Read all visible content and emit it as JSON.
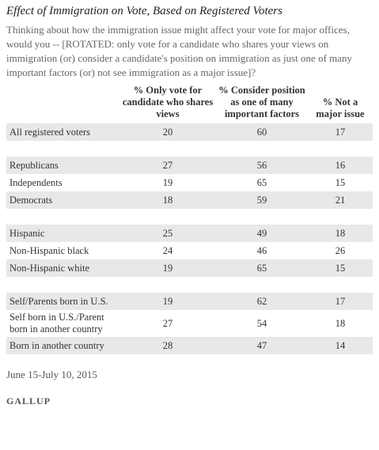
{
  "title": "Effect of Immigration on Vote, Based on Registered Voters",
  "question": "Thinking about how the immigration issue might affect your vote for major offices, would you  --  [ROTATED: only vote for a candidate who shares your views on immigration (or) consider a candidate's position on immigration as just one of many important factors (or) not see immigration as a major issue]?",
  "table": {
    "headers": [
      "% Only vote for candidate who shares views",
      "% Consider position as one of many important factors",
      "% Not a major issue"
    ],
    "groups": [
      [
        [
          "All registered voters",
          20,
          60,
          17
        ]
      ],
      [
        [
          "Republicans",
          27,
          56,
          16
        ],
        [
          "Independents",
          19,
          65,
          15
        ],
        [
          "Democrats",
          18,
          59,
          21
        ]
      ],
      [
        [
          "Hispanic",
          25,
          49,
          18
        ],
        [
          "Non-Hispanic black",
          24,
          46,
          26
        ],
        [
          "Non-Hispanic white",
          19,
          65,
          15
        ]
      ],
      [
        [
          "Self/Parents born in U.S.",
          19,
          62,
          17
        ],
        [
          "Self born in U.S./Parent born in another country",
          27,
          54,
          18
        ],
        [
          "Born in another country",
          28,
          47,
          14
        ]
      ]
    ]
  },
  "footer": {
    "date": "June 15-July 10, 2015",
    "source": "GALLUP"
  }
}
